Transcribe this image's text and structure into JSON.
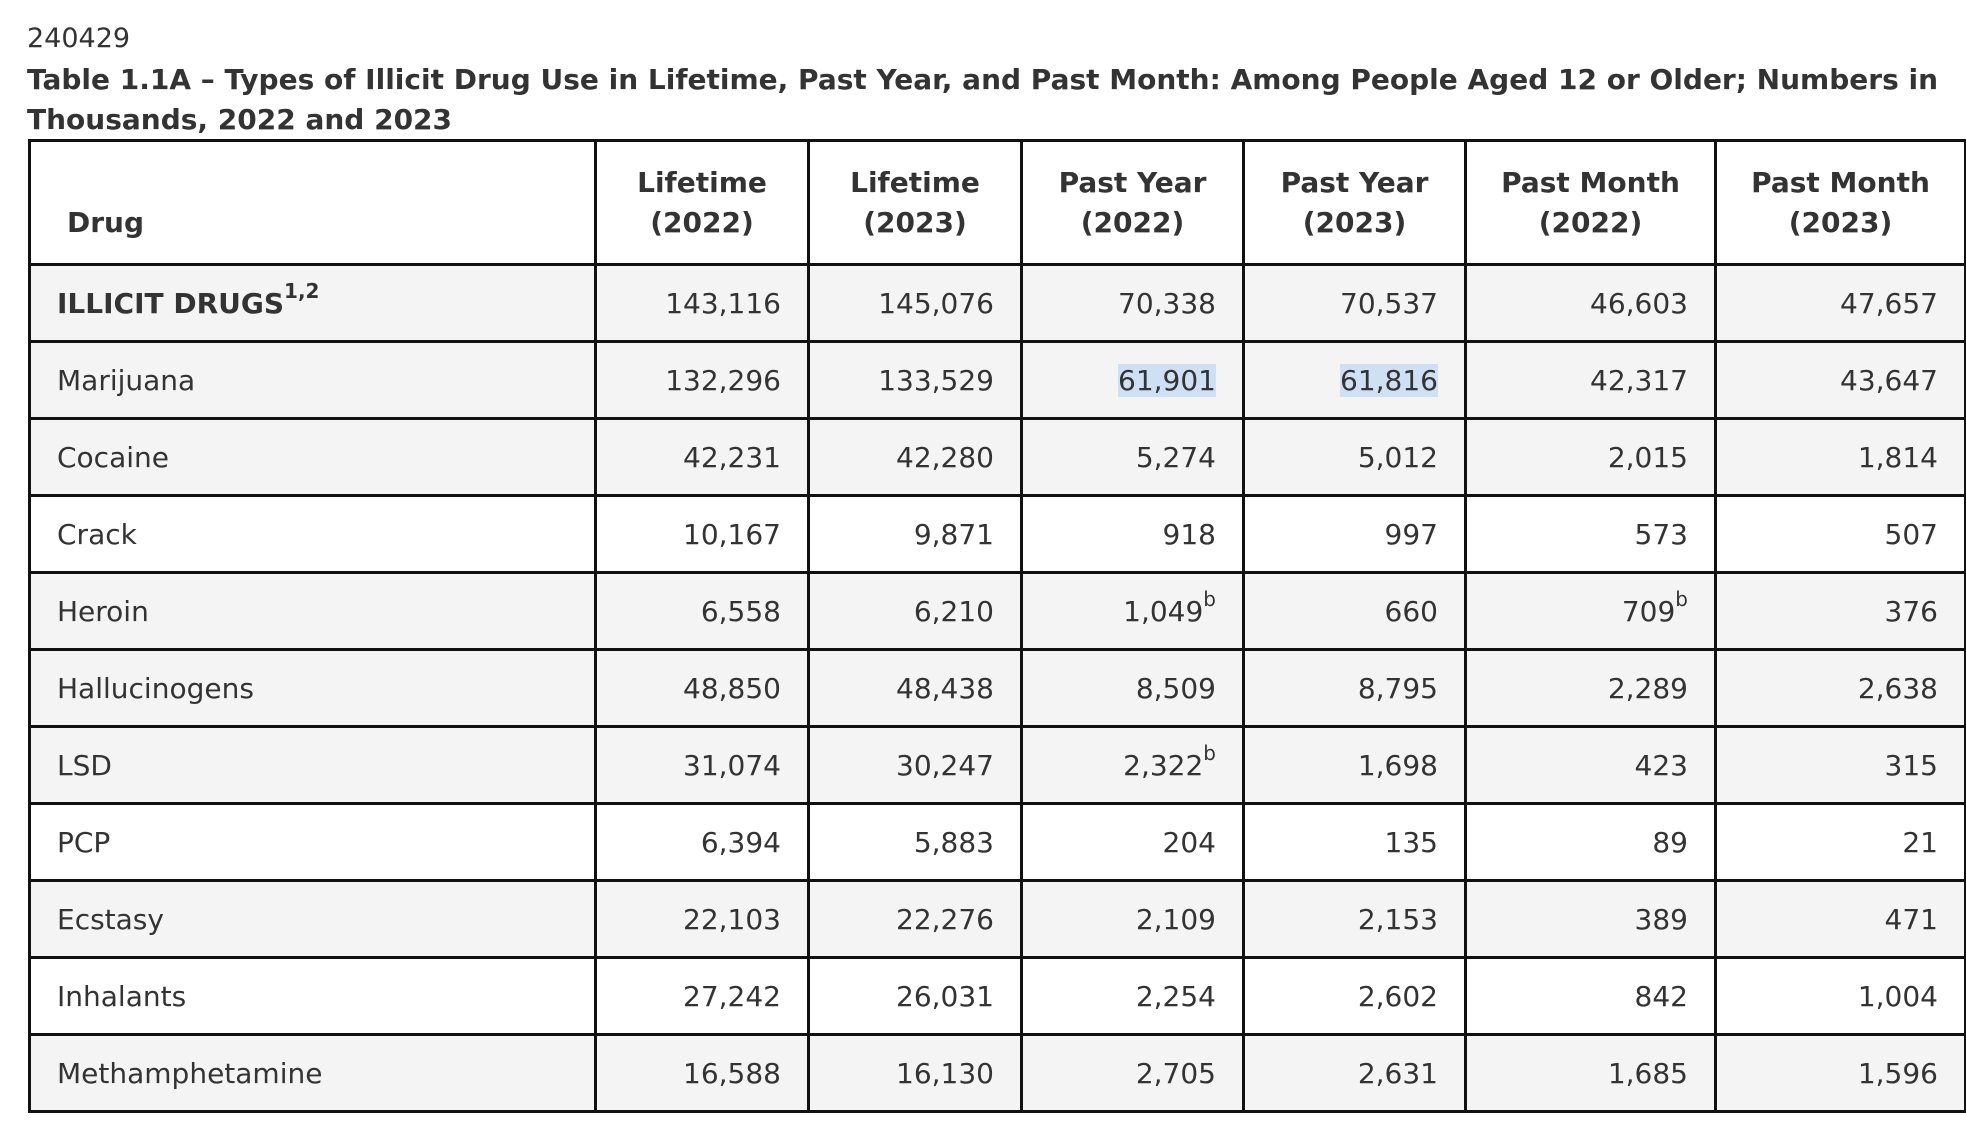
{
  "doc_id": "240429",
  "title": "Table 1.1A – Types of Illicit Drug Use in Lifetime, Past Year, and Past Month: Among People Aged 12 or Older; Numbers in Thousands, 2022 and 2023",
  "columns": [
    {
      "label": "Drug",
      "year": ""
    },
    {
      "label": "Lifetime",
      "year": "(2022)"
    },
    {
      "label": "Lifetime",
      "year": "(2023)"
    },
    {
      "label": "Past Year",
      "year": "(2022)"
    },
    {
      "label": "Past Year",
      "year": "(2023)"
    },
    {
      "label": "Past Month",
      "year": "(2022)"
    },
    {
      "label": "Past Month",
      "year": "(2023)"
    }
  ],
  "rows": [
    {
      "name": "ILLICIT DRUGS",
      "name_sup": "1,2",
      "level": 0,
      "shade": true,
      "values": [
        "143,116",
        "145,076",
        "70,338",
        "70,537",
        "46,603",
        "47,657"
      ],
      "sups": [
        "",
        "",
        "",
        "",
        "",
        ""
      ]
    },
    {
      "name": "Marijuana",
      "name_sup": "",
      "level": 1,
      "shade": true,
      "values": [
        "132,296",
        "133,529",
        "61,901",
        "61,816",
        "42,317",
        "43,647"
      ],
      "sups": [
        "",
        "",
        "",
        "",
        "",
        ""
      ]
    },
    {
      "name": "Cocaine",
      "name_sup": "",
      "level": 1,
      "shade": true,
      "values": [
        "42,231",
        "42,280",
        "5,274",
        "5,012",
        "2,015",
        "1,814"
      ],
      "sups": [
        "",
        "",
        "",
        "",
        "",
        ""
      ]
    },
    {
      "name": "Crack",
      "name_sup": "",
      "level": 2,
      "shade": false,
      "values": [
        "10,167",
        "9,871",
        "918",
        "997",
        "573",
        "507"
      ],
      "sups": [
        "",
        "",
        "",
        "",
        "",
        ""
      ]
    },
    {
      "name": "Heroin",
      "name_sup": "",
      "level": 1,
      "shade": true,
      "values": [
        "6,558",
        "6,210",
        "1,049",
        "660",
        "709",
        "376"
      ],
      "sups": [
        "",
        "",
        "b",
        "",
        "b",
        ""
      ]
    },
    {
      "name": "Hallucinogens",
      "name_sup": "",
      "level": 1,
      "shade": true,
      "values": [
        "48,850",
        "48,438",
        "8,509",
        "8,795",
        "2,289",
        "2,638"
      ],
      "sups": [
        "",
        "",
        "",
        "",
        "",
        ""
      ]
    },
    {
      "name": "LSD",
      "name_sup": "",
      "level": 2,
      "shade": true,
      "values": [
        "31,074",
        "30,247",
        "2,322",
        "1,698",
        "423",
        "315"
      ],
      "sups": [
        "",
        "",
        "b",
        "",
        "",
        ""
      ]
    },
    {
      "name": "PCP",
      "name_sup": "",
      "level": 2,
      "shade": false,
      "values": [
        "6,394",
        "5,883",
        "204",
        "135",
        "89",
        "21"
      ],
      "sups": [
        "",
        "",
        "",
        "",
        "",
        ""
      ]
    },
    {
      "name": "Ecstasy",
      "name_sup": "",
      "level": 2,
      "shade": true,
      "values": [
        "22,103",
        "22,276",
        "2,109",
        "2,153",
        "389",
        "471"
      ],
      "sups": [
        "",
        "",
        "",
        "",
        "",
        ""
      ]
    },
    {
      "name": "Inhalants",
      "name_sup": "",
      "level": 1,
      "shade": false,
      "values": [
        "27,242",
        "26,031",
        "2,254",
        "2,602",
        "842",
        "1,004"
      ],
      "sups": [
        "",
        "",
        "",
        "",
        "",
        ""
      ]
    },
    {
      "name": "Methamphetamine",
      "name_sup": "",
      "level": 1,
      "shade": true,
      "values": [
        "16,588",
        "16,130",
        "2,705",
        "2,631",
        "1,685",
        "1,596"
      ],
      "sups": [
        "",
        "",
        "",
        "",
        "",
        ""
      ]
    }
  ],
  "highlights": [
    [
      1,
      2
    ],
    [
      1,
      3
    ]
  ],
  "colors": {
    "text": "#333333",
    "border": "#111111",
    "row_shade": "#f4f4f4",
    "selection": "#cfe0f5"
  }
}
